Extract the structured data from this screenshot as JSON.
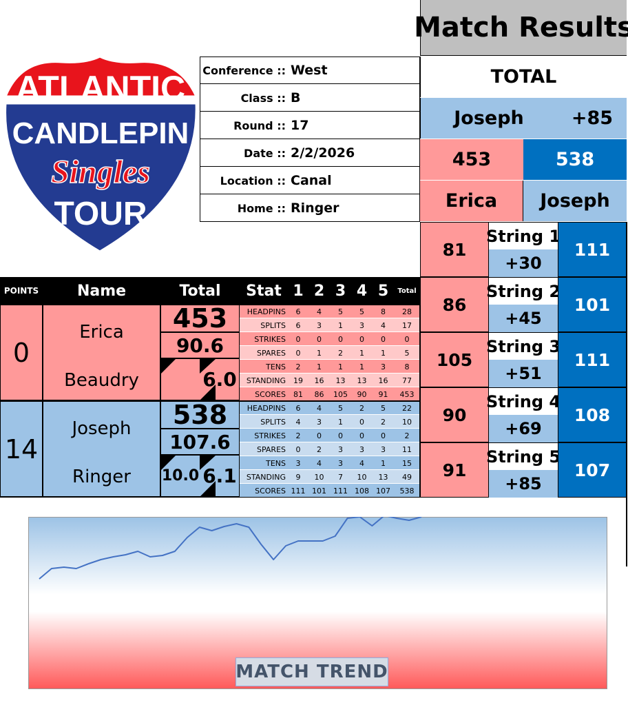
{
  "logo": {
    "line1": "ATLANTIC",
    "line2": "CANDLEPIN",
    "line3": "Singles",
    "line4": "TOUR"
  },
  "info": [
    {
      "label": "Conference ::",
      "value": "West"
    },
    {
      "label": "Class ::",
      "value": "B"
    },
    {
      "label": "Round ::",
      "value": "17"
    },
    {
      "label": "Date ::",
      "value": "2/2/2026"
    },
    {
      "label": "Location ::",
      "value": "Canal"
    },
    {
      "label": "Home ::",
      "value": "Ringer"
    }
  ],
  "results": {
    "title": "Match Results",
    "total_label": "TOTAL",
    "winner": "Joseph",
    "margin": "+85",
    "score_a": 453,
    "score_b": 538,
    "player_a": "Erica",
    "player_b": "Joseph",
    "strings": [
      {
        "a": 81,
        "label": "String 1",
        "diff": "+30",
        "b": 111
      },
      {
        "a": 86,
        "label": "String 2",
        "diff": "+45",
        "b": 101
      },
      {
        "a": 105,
        "label": "String 3",
        "diff": "+51",
        "b": 111
      },
      {
        "a": 90,
        "label": "String 4",
        "diff": "+69",
        "b": 108
      },
      {
        "a": 91,
        "label": "String 5",
        "diff": "+85",
        "b": 107
      }
    ]
  },
  "table": {
    "headers": [
      "POINTS",
      "Name",
      "Total",
      "Stat",
      "1",
      "2",
      "3",
      "4",
      "5",
      "Total"
    ],
    "players": [
      {
        "points": 0,
        "first": "Erica",
        "last": "Beaudry",
        "total": 453,
        "average": 90.6,
        "right_value": "6.0",
        "stats": [
          {
            "name": "HEADPINS",
            "values": [
              6,
              4,
              5,
              5,
              8,
              28
            ]
          },
          {
            "name": "SPLITS",
            "values": [
              6,
              3,
              1,
              3,
              4,
              17
            ]
          },
          {
            "name": "STRIKES",
            "values": [
              0,
              0,
              0,
              0,
              0,
              0
            ]
          },
          {
            "name": "SPARES",
            "values": [
              0,
              1,
              2,
              1,
              1,
              5
            ]
          },
          {
            "name": "TENS",
            "values": [
              2,
              1,
              1,
              1,
              3,
              8
            ]
          },
          {
            "name": "STANDING",
            "values": [
              19,
              16,
              13,
              13,
              16,
              77
            ]
          },
          {
            "name": "SCORES",
            "values": [
              81,
              86,
              105,
              90,
              91,
              453
            ]
          }
        ]
      },
      {
        "points": 14,
        "first": "Joseph",
        "last": "Ringer",
        "total": 538,
        "average": 107.6,
        "left_value": "10.0",
        "right_value": "6.1",
        "stats": [
          {
            "name": "HEADPINS",
            "values": [
              6,
              4,
              5,
              2,
              5,
              22
            ]
          },
          {
            "name": "SPLITS",
            "values": [
              4,
              3,
              1,
              0,
              2,
              10
            ]
          },
          {
            "name": "STRIKES",
            "values": [
              2,
              0,
              0,
              0,
              0,
              2
            ]
          },
          {
            "name": "SPARES",
            "values": [
              0,
              2,
              3,
              3,
              3,
              11
            ]
          },
          {
            "name": "TENS",
            "values": [
              3,
              4,
              3,
              4,
              1,
              15
            ]
          },
          {
            "name": "STANDING",
            "values": [
              9,
              10,
              7,
              10,
              13,
              49
            ]
          },
          {
            "name": "SCORES",
            "values": [
              111,
              101,
              111,
              108,
              107,
              538
            ]
          }
        ]
      }
    ]
  },
  "trend": {
    "type": "line",
    "title": "MATCH TREND",
    "color": "#4472c4",
    "ylim": [
      0,
      250
    ],
    "values": [
      160,
      175,
      177,
      175,
      182,
      188,
      192,
      195,
      200,
      192,
      194,
      200,
      220,
      235,
      230,
      236,
      240,
      235,
      210,
      188,
      208,
      215,
      215,
      215,
      222,
      248,
      250,
      237,
      252,
      248,
      245,
      250
    ]
  }
}
